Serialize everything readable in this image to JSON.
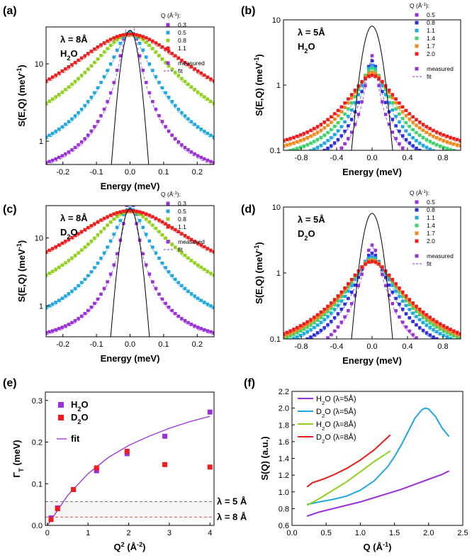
{
  "figure": "Six-panel neutron scattering figure (a)-(f)",
  "chart_data": [
    {
      "panel": "(a)",
      "type": "scatter",
      "xlabel": "Energy (meV)",
      "ylabel": "S(E,Q) (meV⁻¹)",
      "yscale": "log",
      "xlim": [
        -0.25,
        0.25
      ],
      "ylim": [
        0.5,
        30
      ],
      "xticks": [
        "-0.2",
        "-0.1",
        "0.0",
        "0.1",
        "0.2"
      ],
      "xtick_values": [
        -0.2,
        -0.1,
        0.0,
        0.1,
        0.2
      ],
      "yticks": [
        "1",
        "10"
      ],
      "ytick_values": [
        1,
        10
      ],
      "annotation_lines": [
        "λ = 8Å",
        "H₂O"
      ],
      "legend_title": "Q (Å⁻¹):",
      "legend_labels": [
        "0.3",
        "0.5",
        "0.8",
        "1.1"
      ],
      "legend_extra": [
        "measured",
        "fit"
      ],
      "resolution": {
        "peak": 27,
        "fwhm": 0.045
      },
      "series": [
        {
          "name": "0.3",
          "color": "#9b30d9",
          "amplitude": 2.5,
          "gamma": 0.018,
          "background": 0.3
        },
        {
          "name": "0.5",
          "color": "#1ea7e1",
          "amplitude": 3.6,
          "gamma": 0.045,
          "background": 0.33
        },
        {
          "name": "0.8",
          "color": "#8fd11c",
          "amplitude": 6.8,
          "gamma": 0.09,
          "background": 0.33
        },
        {
          "name": "1.1",
          "color": "#ee1c1c",
          "amplitude": 10.5,
          "gamma": 0.14,
          "background": 0.32
        }
      ]
    },
    {
      "panel": "(b)",
      "type": "scatter",
      "xlabel": "Energy (meV)",
      "ylabel": "S(E,Q) (meV⁻¹)",
      "yscale": "log",
      "xlim": [
        -1.0,
        1.0
      ],
      "ylim": [
        0.1,
        10
      ],
      "xticks": [
        "-0.8",
        "-0.4",
        "0.0",
        "0.4",
        "0.8"
      ],
      "xtick_values": [
        -0.8,
        -0.4,
        0.0,
        0.4,
        0.8
      ],
      "yticks": [
        "0.1",
        "1",
        "10"
      ],
      "ytick_values": [
        0.1,
        1,
        10
      ],
      "annotation_lines": [
        "λ = 5Å",
        "H₂O"
      ],
      "legend_title": "Q (Å⁻¹):",
      "legend_labels": [
        "0.5",
        "0.8",
        "1.1",
        "1.4",
        "1.7",
        "2.0"
      ],
      "legend_extra": [
        "measured",
        "fit"
      ],
      "resolution": {
        "peak": 8,
        "fwhm": 0.18
      },
      "series": [
        {
          "name": "0.5",
          "color": "#9b30d9",
          "amplitude": 0.48,
          "gamma": 0.055,
          "background": 0.04
        },
        {
          "name": "0.8",
          "color": "#2f2fe0",
          "amplitude": 0.58,
          "gamma": 0.08,
          "background": 0.05
        },
        {
          "name": "1.1",
          "color": "#1ea7e1",
          "amplitude": 0.68,
          "gamma": 0.11,
          "background": 0.05
        },
        {
          "name": "1.4",
          "color": "#3ed36b",
          "amplitude": 0.77,
          "gamma": 0.14,
          "background": 0.06
        },
        {
          "name": "1.7",
          "color": "#f08a1c",
          "amplitude": 0.85,
          "gamma": 0.18,
          "background": 0.07
        },
        {
          "name": "2.0",
          "color": "#ee1c1c",
          "amplitude": 0.92,
          "gamma": 0.22,
          "background": 0.08
        }
      ]
    },
    {
      "panel": "(c)",
      "type": "scatter",
      "xlabel": "Energy (meV)",
      "ylabel": "S(E,Q) (meV⁻¹)",
      "yscale": "log",
      "xlim": [
        -0.25,
        0.25
      ],
      "ylim": [
        0.35,
        30
      ],
      "xticks": [
        "-0.2",
        "-0.1",
        "0.0",
        "0.1",
        "0.2"
      ],
      "xtick_values": [
        -0.2,
        -0.1,
        0.0,
        0.1,
        0.2
      ],
      "yticks": [
        "1",
        "10"
      ],
      "ytick_values": [
        1,
        10
      ],
      "annotation_lines": [
        "λ = 8Å",
        "D₂O"
      ],
      "legend_title": "Q (Å⁻¹):",
      "legend_labels": [
        "0.3",
        "0.5",
        "0.8",
        "1.1"
      ],
      "legend_extra": [
        "measured",
        "fit"
      ],
      "resolution": {
        "peak": 27,
        "fwhm": 0.045
      },
      "series": [
        {
          "name": "0.3",
          "color": "#9b30d9",
          "amplitude": 2.0,
          "gamma": 0.015,
          "background": 0.25
        },
        {
          "name": "0.5",
          "color": "#1ea7e1",
          "amplitude": 3.4,
          "gamma": 0.04,
          "background": 0.27
        },
        {
          "name": "0.8",
          "color": "#8fd11c",
          "amplitude": 6.6,
          "gamma": 0.085,
          "background": 0.27
        },
        {
          "name": "1.1",
          "color": "#ee1c1c",
          "amplitude": 11.0,
          "gamma": 0.14,
          "background": 0.26
        }
      ]
    },
    {
      "panel": "(d)",
      "type": "scatter",
      "xlabel": "Energy (meV)",
      "ylabel": "S(E,Q) (meV⁻¹)",
      "yscale": "log",
      "xlim": [
        -1.0,
        1.0
      ],
      "ylim": [
        0.1,
        10
      ],
      "xticks": [
        "-0.8",
        "-0.4",
        "0.0",
        "0.4",
        "0.8"
      ],
      "xtick_values": [
        -0.8,
        -0.4,
        0.0,
        0.4,
        0.8
      ],
      "yticks": [
        "0.1",
        "1",
        "10"
      ],
      "ytick_values": [
        0.1,
        1,
        10
      ],
      "annotation_lines": [
        "λ = 5Å",
        "D₂O"
      ],
      "legend_title": "Q (Å⁻¹):",
      "legend_labels": [
        "0.5",
        "0.8",
        "1.1",
        "1.4",
        "1.7",
        "2.0"
      ],
      "legend_extra": [
        "measured",
        "fit"
      ],
      "resolution": {
        "peak": 8,
        "fwhm": 0.18
      },
      "series": [
        {
          "name": "0.5",
          "color": "#9b30d9",
          "amplitude": 0.7,
          "gamma": 0.085,
          "background": 0.03
        },
        {
          "name": "0.8",
          "color": "#2f2fe0",
          "amplitude": 0.8,
          "gamma": 0.13,
          "background": 0.04
        },
        {
          "name": "1.1",
          "color": "#1ea7e1",
          "amplitude": 0.92,
          "gamma": 0.17,
          "background": 0.04
        },
        {
          "name": "1.4",
          "color": "#3ed36b",
          "amplitude": 1.0,
          "gamma": 0.2,
          "background": 0.04
        },
        {
          "name": "1.7",
          "color": "#f08a1c",
          "amplitude": 1.06,
          "gamma": 0.22,
          "background": 0.04
        },
        {
          "name": "2.0",
          "color": "#ee1c1c",
          "amplitude": 1.1,
          "gamma": 0.24,
          "background": 0.04
        }
      ]
    },
    {
      "panel": "(e)",
      "type": "scatter",
      "xlabel": "Q² (Å⁻²)",
      "ylabel": "ΓT (meV)",
      "xlim": [
        -0.05,
        4.1
      ],
      "ylim": [
        0,
        0.32
      ],
      "xticks": [
        "0",
        "1",
        "2",
        "3",
        "4"
      ],
      "xtick_values": [
        0,
        1,
        2,
        3,
        4
      ],
      "yticks": [
        "0.0",
        "0.1",
        "0.2",
        "0.3"
      ],
      "ytick_values": [
        0.0,
        0.1,
        0.2,
        0.3
      ],
      "series": [
        {
          "name": "H₂O",
          "color": "#9b30d9",
          "x": [
            0.09,
            0.25,
            0.64,
            1.21,
            1.96,
            2.89,
            4.0
          ],
          "y": [
            0.018,
            0.042,
            0.086,
            0.131,
            0.172,
            0.214,
            0.272
          ]
        },
        {
          "name": "D₂O",
          "color": "#ee1c1c",
          "x": [
            0.09,
            0.25,
            0.64,
            1.21,
            1.96,
            2.89,
            4.0
          ],
          "y": [
            0.014,
            0.04,
            0.086,
            0.138,
            0.178,
            0.146,
            0.14
          ]
        }
      ],
      "fit": {
        "name": "fit",
        "color": "#9b30d9",
        "x": [
          0,
          0.5,
          1.0,
          1.5,
          2.0,
          2.5,
          3.0,
          3.5,
          4.0
        ],
        "y": [
          0.0,
          0.072,
          0.124,
          0.163,
          0.192,
          0.214,
          0.233,
          0.249,
          0.262
        ]
      },
      "reference_lines": [
        {
          "label": "λ = 5 Å",
          "y": 0.057,
          "color": "#555555"
        },
        {
          "label": "λ = 8 Å",
          "y": 0.02,
          "color": "#ee1c1c"
        }
      ]
    },
    {
      "panel": "(f)",
      "type": "line",
      "xlabel": "Q (Å⁻¹)",
      "ylabel": "S(Q) (a.u.)",
      "xlim": [
        0,
        2.5
      ],
      "ylim": [
        0.6,
        2.2
      ],
      "xticks": [
        "0.0",
        "0.5",
        "1.0",
        "1.5",
        "2.0",
        "2.5"
      ],
      "xtick_values": [
        0.0,
        0.5,
        1.0,
        1.5,
        2.0,
        2.5
      ],
      "yticks": [
        "0.6",
        "0.8",
        "1.0",
        "1.2",
        "1.4",
        "1.6",
        "1.8",
        "2.0",
        "2.2"
      ],
      "ytick_values": [
        0.6,
        0.8,
        1.0,
        1.2,
        1.4,
        1.6,
        1.8,
        2.0,
        2.2
      ],
      "series": [
        {
          "name": "H₂O (λ=5Å)",
          "color": "#9b30d9",
          "x": [
            0.22,
            0.4,
            0.6,
            0.8,
            1.0,
            1.2,
            1.4,
            1.6,
            1.8,
            2.0,
            2.2,
            2.3
          ],
          "y": [
            0.71,
            0.76,
            0.8,
            0.84,
            0.88,
            0.93,
            0.98,
            1.03,
            1.09,
            1.15,
            1.21,
            1.25
          ]
        },
        {
          "name": "D₂O (λ=5Å)",
          "color": "#1ea7e1",
          "x": [
            0.22,
            0.4,
            0.6,
            0.8,
            1.0,
            1.2,
            1.4,
            1.5,
            1.6,
            1.7,
            1.8,
            1.9,
            1.95,
            2.0,
            2.1,
            2.2,
            2.3
          ],
          "y": [
            0.85,
            0.88,
            0.91,
            0.95,
            1.02,
            1.13,
            1.3,
            1.42,
            1.56,
            1.72,
            1.88,
            1.98,
            2.0,
            1.99,
            1.9,
            1.76,
            1.66
          ]
        },
        {
          "name": "H₂O (λ=8Å)",
          "color": "#8fd11c",
          "x": [
            0.22,
            0.4,
            0.6,
            0.8,
            1.0,
            1.2,
            1.44
          ],
          "y": [
            0.84,
            0.92,
            1.02,
            1.12,
            1.24,
            1.36,
            1.49
          ]
        },
        {
          "name": "D₂O (λ=8Å)",
          "color": "#ee1c1c",
          "x": [
            0.22,
            0.3,
            0.45,
            0.6,
            0.8,
            1.0,
            1.2,
            1.44
          ],
          "y": [
            1.06,
            1.11,
            1.15,
            1.2,
            1.28,
            1.38,
            1.5,
            1.68
          ]
        }
      ]
    }
  ]
}
